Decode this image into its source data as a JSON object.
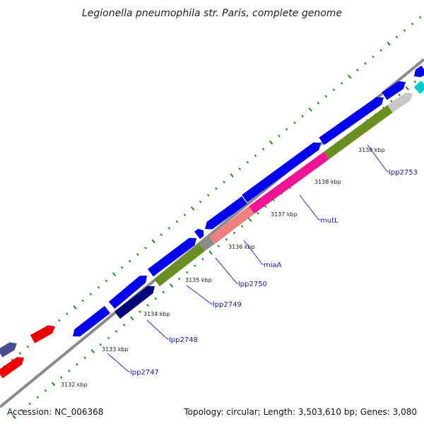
{
  "title": "Legionella pneumophila str. Paris, complete genome",
  "footer": {
    "accession": "Accession: NC_006368",
    "summary": "Topology: circular; Length: 3,503,610 bp; Genes: 3,080"
  },
  "ticks": [
    {
      "label": "3132 kbp"
    },
    {
      "label": "3133 kbp"
    },
    {
      "label": "3134 kbp"
    },
    {
      "label": "3135 kbp"
    },
    {
      "label": "3136 kbp"
    },
    {
      "label": "3137 kbp"
    },
    {
      "label": "3138 kbp"
    },
    {
      "label": "3139 kbp"
    }
  ],
  "gene_labels": [
    {
      "name": "lpp2747"
    },
    {
      "name": "lpp2748"
    },
    {
      "name": "lpp2749"
    },
    {
      "name": "lpp2750"
    },
    {
      "name": "miaA"
    },
    {
      "name": "mutL"
    },
    {
      "name": "lpp2753"
    }
  ],
  "colors": {
    "backbone": "#8a8a8a",
    "dots": "#1f8a1f",
    "blue": "#0000ee",
    "red": "#ee0000",
    "navy": "#00007a",
    "slate": "#4b4b8f",
    "olive": "#6b8e23",
    "pink": "#f08080",
    "magenta": "#ee1493",
    "gray": "#8a8a8a",
    "lightgray": "#c8c8c8",
    "cyan": "#00cccc",
    "leader": "#2b2bd4"
  }
}
